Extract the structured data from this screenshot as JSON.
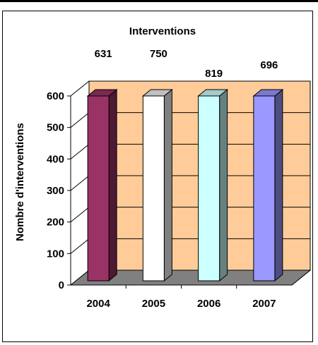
{
  "chart_data": {
    "type": "bar",
    "title": "Interventions",
    "xlabel": "",
    "ylabel": "Nombre d'interventions",
    "categories": [
      "2004",
      "2005",
      "2006",
      "2007"
    ],
    "values": [
      631,
      750,
      819,
      696
    ],
    "data_labels": [
      "631",
      "750",
      "819",
      "696"
    ],
    "ylim": [
      0,
      600
    ],
    "yticks": [
      "0",
      "100",
      "200",
      "300",
      "400",
      "500",
      "600"
    ],
    "grid": true,
    "legend": "none",
    "colors": {
      "wall": "#FFCC99",
      "floor": "#808080",
      "bars": [
        {
          "front": "#993366",
          "side": "#4D1A33",
          "top": "#7A2952"
        },
        {
          "front": "#FFFFFF",
          "side": "#808080",
          "top": "#C0C0C0"
        },
        {
          "front": "#CCFFFF",
          "side": "#668080",
          "top": "#A3CCCC"
        },
        {
          "front": "#9999FF",
          "side": "#4D4D80",
          "top": "#7A7ACC"
        }
      ]
    }
  }
}
